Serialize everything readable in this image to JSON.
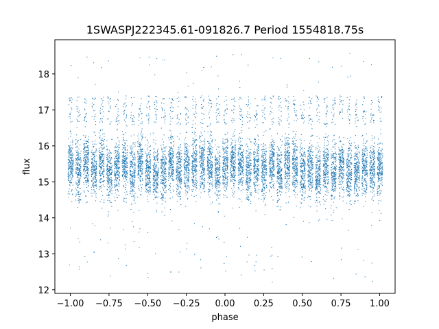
{
  "chart_data": {
    "type": "scatter",
    "title": "1SWASPJ222345.61-091826.7 Period 1554818.75s",
    "xlabel": "phase",
    "ylabel": "flux",
    "xlim": [
      -1.1,
      1.1
    ],
    "ylim": [
      11.9,
      18.95
    ],
    "x_ticks": [
      -1.0,
      -0.75,
      -0.5,
      -0.25,
      0.0,
      0.25,
      0.5,
      0.75,
      1.0
    ],
    "x_tick_labels": [
      "−1.00",
      "−0.75",
      "−0.50",
      "−0.25",
      "0.00",
      "0.25",
      "0.50",
      "0.75",
      "1.00"
    ],
    "y_ticks": [
      12,
      13,
      14,
      15,
      16,
      17,
      18
    ],
    "y_tick_labels": [
      "12",
      "13",
      "14",
      "15",
      "16",
      "17",
      "18"
    ],
    "grid": false,
    "marker_color": "#1f77b4",
    "series": [
      {
        "clusters": {
          "phase_start": -1.0,
          "phase_end": 1.0,
          "count": 40,
          "main_band": [
            14.6,
            16.2
          ],
          "upper_band": [
            16.6,
            17.4
          ],
          "outlier_range": [
            12.2,
            18.6
          ]
        },
        "points": [
          [
            -1.0,
            15.4
          ],
          [
            -0.95,
            15.6
          ],
          [
            -0.9,
            15.7
          ],
          [
            -0.85,
            15.5
          ],
          [
            -0.8,
            15.3
          ],
          [
            -0.75,
            15.6
          ],
          [
            -0.7,
            15.2
          ],
          [
            -0.65,
            15.4
          ],
          [
            -0.6,
            15.3
          ],
          [
            -0.55,
            15.2
          ],
          [
            -0.5,
            15.4
          ],
          [
            -0.45,
            15.2
          ],
          [
            -0.4,
            15.3
          ],
          [
            -0.35,
            15.4
          ],
          [
            -0.3,
            15.2
          ],
          [
            -0.25,
            15.4
          ],
          [
            -0.2,
            15.5
          ],
          [
            -0.15,
            15.5
          ],
          [
            -0.1,
            15.6
          ],
          [
            -0.05,
            15.3
          ],
          [
            0.0,
            15.4
          ],
          [
            0.05,
            15.6
          ],
          [
            0.1,
            15.7
          ],
          [
            0.15,
            15.5
          ],
          [
            0.2,
            15.3
          ],
          [
            0.25,
            15.6
          ],
          [
            0.3,
            15.2
          ],
          [
            0.35,
            15.4
          ],
          [
            0.4,
            15.3
          ],
          [
            0.45,
            15.2
          ],
          [
            0.5,
            15.4
          ],
          [
            0.55,
            15.2
          ],
          [
            0.6,
            15.3
          ],
          [
            0.65,
            15.4
          ],
          [
            0.7,
            15.2
          ],
          [
            0.75,
            15.4
          ],
          [
            0.8,
            15.5
          ],
          [
            0.85,
            15.5
          ],
          [
            0.9,
            15.6
          ],
          [
            0.95,
            15.3
          ],
          [
            1.0,
            15.4
          ]
        ]
      }
    ]
  }
}
